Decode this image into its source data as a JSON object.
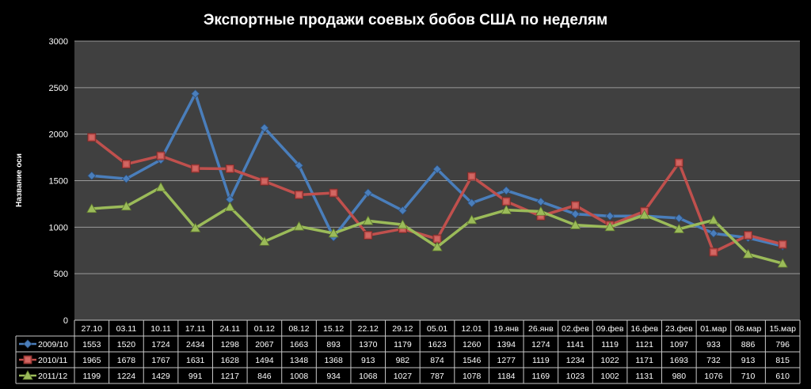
{
  "chart_data": {
    "type": "line",
    "title": "Экспортные продажи соевых бобов США по неделям",
    "xlabel": "",
    "ylabel": "Название оси",
    "ylim": [
      0,
      3000
    ],
    "yticks": [
      0,
      500,
      1000,
      1500,
      2000,
      2500,
      3000
    ],
    "grid": true,
    "legend_position": "data-table-left",
    "data_table": true,
    "categories": [
      "27.10",
      "03.11",
      "10.11",
      "17.11",
      "24.11",
      "01.12",
      "08.12",
      "15.12",
      "22.12",
      "29.12",
      "05.01",
      "12.01",
      "19.янв",
      "26.янв",
      "02.фев",
      "09.фев",
      "16.фев",
      "23.фев",
      "01.мар",
      "08.мар",
      "15.мар"
    ],
    "series": [
      {
        "name": "2009/10",
        "color": "#4a7ebb",
        "marker": "diamond",
        "values": [
          1553,
          1520,
          1724,
          2434,
          1298,
          2067,
          1663,
          893,
          1370,
          1179,
          1623,
          1260,
          1394,
          1274,
          1141,
          1119,
          1121,
          1097,
          933,
          886,
          796
        ]
      },
      {
        "name": "2010/11",
        "color": "#c0504d",
        "marker": "square",
        "values": [
          1965,
          1678,
          1767,
          1631,
          1628,
          1494,
          1348,
          1368,
          913,
          982,
          874,
          1546,
          1277,
          1119,
          1234,
          1022,
          1171,
          1693,
          732,
          913,
          815
        ]
      },
      {
        "name": "2011/12",
        "color": "#9bbb59",
        "marker": "triangle",
        "values": [
          1199,
          1224,
          1429,
          991,
          1217,
          846,
          1008,
          934,
          1068,
          1027,
          787,
          1078,
          1184,
          1169,
          1023,
          1002,
          1131,
          980,
          1076,
          710,
          610
        ]
      }
    ]
  }
}
